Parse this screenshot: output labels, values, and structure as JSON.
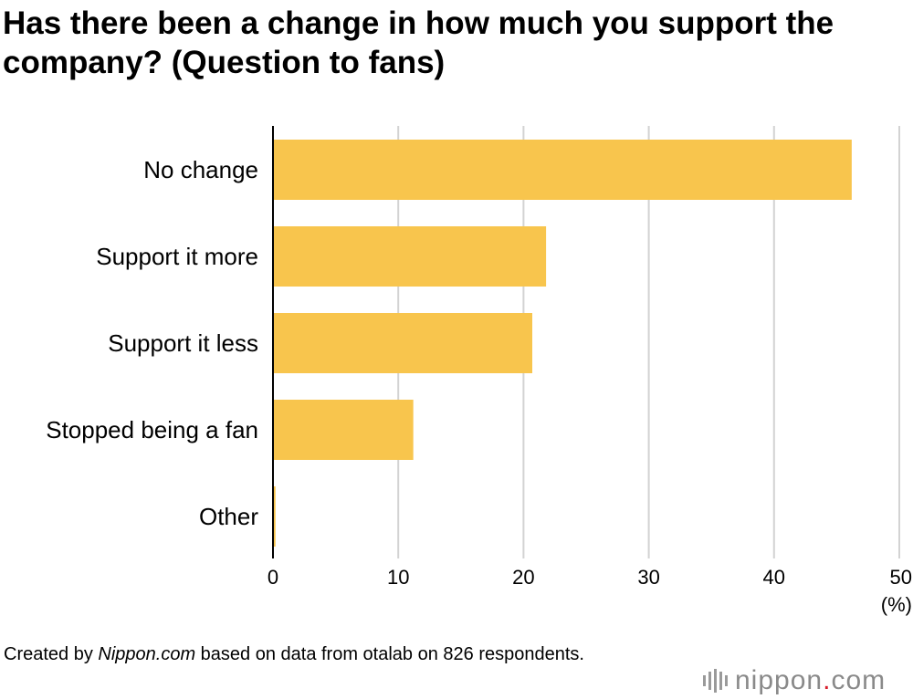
{
  "title": "Has there been a change in how much you support the company? (Question to fans)",
  "caption": {
    "prefix": "Created by ",
    "source_italic": "Nippon.com",
    "suffix": " based on data from otalab on 826 respondents."
  },
  "logo": {
    "name": "nippon",
    "dot": ".",
    "tld": "com"
  },
  "colors": {
    "bar": "#f8c54d",
    "grid": "#d3d3d3",
    "axis": "#000000",
    "logo_dot": "#d81e2c"
  },
  "chart_data": {
    "type": "bar",
    "orientation": "horizontal",
    "categories": [
      "No change",
      "Support it more",
      "Support it less",
      "Stopped being a fan",
      "Other"
    ],
    "values": [
      46.2,
      21.8,
      20.7,
      11.2,
      0.2
    ],
    "xlim": [
      0,
      50
    ],
    "xticks": [
      0,
      10,
      20,
      30,
      40,
      50
    ],
    "xunit": "(%)",
    "grid": true
  }
}
